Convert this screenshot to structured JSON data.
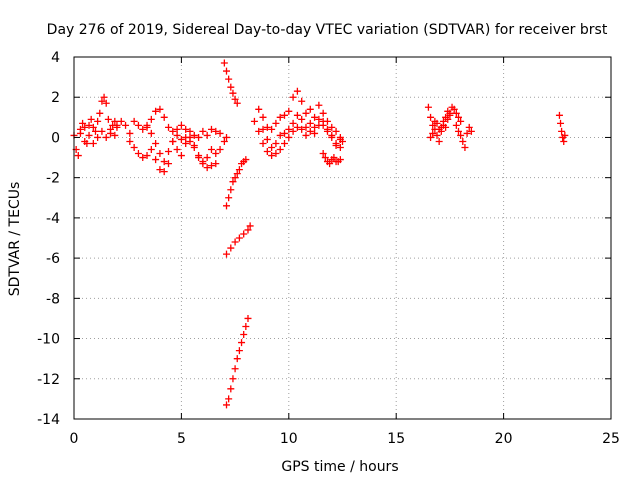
{
  "chart_data": {
    "type": "scatter",
    "title": "Day 276 of 2019, Sidereal Day-to-day VTEC variation (SDTVAR) for receiver brst",
    "xlabel": "GPS time / hours",
    "ylabel": "SDTVAR / TECUs",
    "xlim": [
      0,
      25
    ],
    "ylim": [
      -14,
      4
    ],
    "xticks": [
      0,
      5,
      10,
      15,
      20,
      25
    ],
    "yticks": [
      4,
      2,
      0,
      -2,
      -4,
      -6,
      -8,
      -10,
      -12,
      -14
    ],
    "grid": true,
    "marker": "plus",
    "color": "#ff0000",
    "series": [
      {
        "x": [
          0.0,
          0.1,
          0.2,
          0.3,
          0.4,
          0.5,
          0.6,
          0.7,
          0.8,
          0.9,
          1.0,
          1.1,
          1.2,
          1.3,
          1.4,
          1.5,
          1.6,
          1.7,
          1.8,
          1.9,
          2.0
        ],
        "y": [
          0.1,
          -0.6,
          -0.9,
          0.4,
          0.7,
          0.5,
          -0.3,
          0.6,
          0.9,
          0.5,
          0.3,
          0.8,
          1.2,
          1.8,
          2.0,
          1.7,
          0.9,
          0.4,
          0.6,
          0.8,
          0.6
        ]
      },
      {
        "x": [
          0.3,
          0.5,
          0.7,
          0.9,
          1.1,
          1.3,
          1.5,
          1.7,
          1.9
        ],
        "y": [
          0.2,
          -0.2,
          0.1,
          -0.3,
          0.0,
          0.3,
          0.0,
          0.2,
          0.1
        ]
      },
      {
        "x": [
          2.0,
          2.2,
          2.4,
          2.6,
          2.8,
          3.0,
          3.2,
          3.4,
          3.6,
          3.8,
          4.0,
          4.2,
          4.4,
          4.6,
          4.8,
          5.0,
          5.2,
          5.4,
          5.6,
          5.8,
          6.0,
          6.2,
          6.4,
          6.6,
          6.8
        ],
        "y": [
          0.5,
          0.8,
          0.6,
          0.2,
          0.8,
          0.6,
          0.4,
          0.5,
          0.9,
          1.3,
          1.4,
          1.0,
          0.5,
          0.3,
          0.4,
          0.6,
          0.4,
          0.3,
          0.1,
          0.0,
          0.3,
          0.1,
          0.4,
          0.3,
          0.2
        ]
      },
      {
        "x": [
          2.6,
          2.8,
          3.0,
          3.2,
          3.4,
          3.6,
          3.8,
          4.0,
          4.2,
          4.4,
          4.6,
          4.8,
          5.0,
          5.2,
          5.4,
          5.6,
          5.8,
          6.0,
          6.2,
          6.4,
          6.6
        ],
        "y": [
          -0.2,
          -0.5,
          -0.8,
          -1.0,
          -0.9,
          -0.6,
          -1.1,
          -1.6,
          -1.2,
          -0.7,
          -0.2,
          -0.6,
          -0.9,
          -0.3,
          0.0,
          -0.5,
          -0.9,
          -1.2,
          -1.0,
          -0.6,
          -0.8
        ]
      },
      {
        "x": [
          3.4,
          3.6,
          3.8,
          4.0,
          4.2,
          4.4,
          4.6,
          4.8,
          5.0,
          5.2,
          5.4,
          5.6,
          5.8,
          6.0,
          6.2,
          6.4,
          6.6,
          6.8,
          7.0,
          7.1
        ],
        "y": [
          0.6,
          0.2,
          -0.3,
          -0.8,
          -1.7,
          -1.3,
          -0.2,
          0.1,
          -0.1,
          0.0,
          -0.2,
          -0.4,
          -1.0,
          -1.3,
          -1.5,
          -1.4,
          -1.3,
          -0.6,
          -0.2,
          0.0
        ]
      },
      {
        "x": [
          7.0,
          7.1,
          7.2,
          7.3,
          7.4,
          7.5,
          7.6
        ],
        "y": [
          3.7,
          3.3,
          2.9,
          2.5,
          2.2,
          1.9,
          1.7
        ]
      },
      {
        "x": [
          7.1,
          7.2,
          7.3,
          7.4,
          7.5,
          7.6,
          7.7,
          7.8,
          7.9,
          8.0
        ],
        "y": [
          -3.4,
          -3.0,
          -2.6,
          -2.2,
          -2.0,
          -1.8,
          -1.6,
          -1.3,
          -1.2,
          -1.1
        ]
      },
      {
        "x": [
          7.1,
          7.3,
          7.5,
          7.7,
          7.9,
          8.1,
          8.2
        ],
        "y": [
          -5.8,
          -5.5,
          -5.2,
          -5.0,
          -4.8,
          -4.6,
          -4.4
        ]
      },
      {
        "x": [
          7.1,
          7.2,
          7.3,
          7.4,
          7.5,
          7.6,
          7.7,
          7.8,
          7.9,
          8.0,
          8.1
        ],
        "y": [
          -13.3,
          -13.0,
          -12.5,
          -12.0,
          -11.5,
          -11.0,
          -10.6,
          -10.2,
          -9.8,
          -9.4,
          -9.0
        ]
      },
      {
        "x": [
          8.4,
          8.6,
          8.8,
          9.0,
          9.2,
          9.4,
          9.6,
          9.8,
          10.0,
          10.2,
          10.4,
          10.6,
          10.8,
          11.0,
          11.2,
          11.4,
          11.6,
          11.8,
          12.0,
          12.2,
          12.4,
          12.5
        ],
        "y": [
          0.8,
          1.4,
          1.0,
          0.5,
          0.4,
          0.7,
          1.0,
          1.1,
          1.3,
          2.0,
          2.3,
          1.8,
          1.2,
          1.4,
          1.0,
          1.6,
          1.2,
          0.8,
          0.5,
          0.3,
          0.0,
          -0.2
        ]
      },
      {
        "x": [
          8.6,
          8.8,
          9.0,
          9.2,
          9.4,
          9.6,
          9.8,
          10.0,
          10.2,
          10.4,
          10.6,
          10.8,
          11.0,
          11.2,
          11.4,
          11.6,
          11.8,
          12.0,
          12.2,
          12.4
        ],
        "y": [
          0.3,
          0.4,
          -0.1,
          -0.5,
          -0.3,
          0.1,
          0.2,
          0.4,
          0.7,
          1.1,
          0.9,
          0.5,
          0.7,
          0.2,
          0.9,
          0.6,
          0.3,
          0.1,
          -0.3,
          -0.5
        ]
      },
      {
        "x": [
          8.8,
          9.0,
          9.2,
          9.4,
          9.6,
          9.8,
          10.0,
          10.2,
          10.4,
          10.6,
          10.8,
          11.0,
          11.2,
          11.4,
          11.6,
          11.8,
          12.0,
          12.2,
          12.4
        ],
        "y": [
          -0.3,
          -0.7,
          -0.9,
          -0.8,
          -0.6,
          -0.3,
          0.0,
          0.3,
          0.5,
          0.4,
          0.1,
          0.3,
          0.5,
          0.6,
          0.8,
          0.4,
          0.0,
          -0.4,
          -0.1
        ]
      },
      {
        "x": [
          11.6,
          11.7,
          11.8,
          11.9,
          12.0,
          12.1,
          12.2,
          12.3,
          12.4
        ],
        "y": [
          -0.8,
          -1.0,
          -1.2,
          -1.3,
          -1.1,
          -1.0,
          -1.2,
          -1.2,
          -1.1
        ]
      },
      {
        "x": [
          16.5,
          16.6,
          16.7,
          16.8,
          16.9,
          17.0,
          17.1,
          17.2,
          17.3,
          17.4,
          17.5,
          17.6,
          17.7,
          17.8,
          17.9,
          18.0
        ],
        "y": [
          1.5,
          1.0,
          0.6,
          0.8,
          0.7,
          0.4,
          0.5,
          0.8,
          1.0,
          1.3,
          1.2,
          1.5,
          1.4,
          1.2,
          1.0,
          0.8
        ]
      },
      {
        "x": [
          16.6,
          16.7,
          16.8,
          16.9,
          17.0,
          17.1,
          17.2,
          17.3,
          17.4,
          17.5
        ],
        "y": [
          0.0,
          0.2,
          0.4,
          0.1,
          -0.2,
          0.3,
          0.6,
          0.5,
          0.9,
          1.1
        ]
      },
      {
        "x": [
          17.8,
          17.9,
          18.0,
          18.1,
          18.2,
          18.3,
          18.4,
          18.5
        ],
        "y": [
          0.6,
          0.3,
          0.1,
          -0.2,
          -0.5,
          0.2,
          0.5,
          0.3
        ]
      },
      {
        "x": [
          22.6,
          22.65,
          22.7,
          22.75,
          22.8,
          22.85
        ],
        "y": [
          1.1,
          0.7,
          0.3,
          0.0,
          -0.2,
          0.1
        ]
      }
    ]
  }
}
